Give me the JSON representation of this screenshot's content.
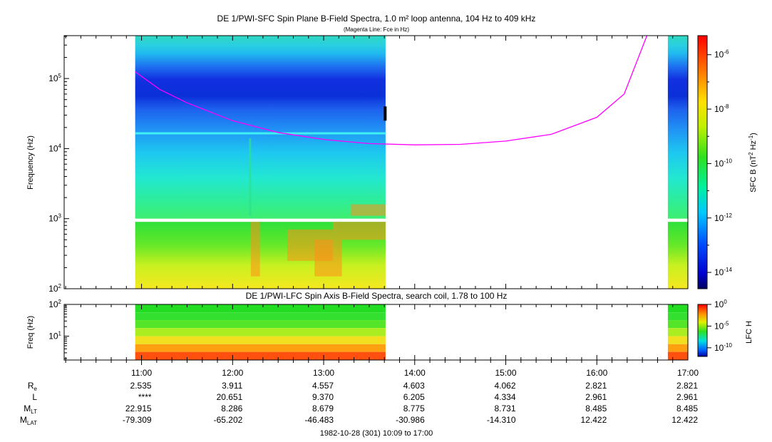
{
  "chart_data": [
    {
      "type": "heatmap",
      "title": "DE 1/PWI-SFC  Spin Plane B-Field Spectra, 1.0 m² loop antenna, 104 Hz to 409 kHz",
      "subtitle": "(Magenta Line: Fce in Hz)",
      "xlabel": "",
      "ylabel": "Frequency (Hz)",
      "y_scale": "log",
      "ylim": [
        100,
        409000
      ],
      "y_ticks": [
        {
          "value": 100,
          "base": "10",
          "exp": "2"
        },
        {
          "value": 1000,
          "base": "10",
          "exp": "3"
        },
        {
          "value": 10000,
          "base": "10",
          "exp": "4"
        },
        {
          "value": 100000,
          "base": "10",
          "exp": "5"
        }
      ],
      "x_range_hours": [
        10.15,
        17.0
      ],
      "data_coverage_hours": [
        [
          10.93,
          13.68
        ],
        [
          16.78,
          17.0
        ]
      ],
      "gap_band_hz": [
        900,
        1000
      ],
      "colorbar": {
        "label_base": "SFC B (nT",
        "label_sup1": "2",
        "label_mid": " Hz",
        "label_sup2": "-1",
        "label_end": ")",
        "range_exp": [
          -14.6,
          -5.3
        ],
        "ticks": [
          {
            "exp": -6,
            "label_base": "10",
            "label_exp": "-6"
          },
          {
            "exp": -8,
            "label_base": "10",
            "label_exp": "-8"
          },
          {
            "exp": -10,
            "label_base": "10",
            "label_exp": "-10"
          },
          {
            "exp": -12,
            "label_base": "10",
            "label_exp": "-12"
          },
          {
            "exp": -14,
            "label_base": "10",
            "label_exp": "-14"
          }
        ]
      },
      "series": [
        {
          "name": "Fce (Hz)",
          "color": "#ff00ff",
          "x": [
            10.93,
            11.2,
            11.5,
            12.0,
            12.5,
            13.0,
            13.5,
            14.0,
            14.5,
            15.0,
            15.5,
            16.0,
            16.3,
            16.55
          ],
          "y": [
            125000,
            70000,
            45000,
            25000,
            17000,
            13500,
            11800,
            11300,
            11500,
            12800,
            16000,
            28000,
            60000,
            409000
          ]
        }
      ]
    },
    {
      "type": "heatmap",
      "title": "DE 1/PWI-LFC  Spin Axis B-Field Spectra, search coil, 1.78 to 100 Hz",
      "ylabel": "Freq (Hz)",
      "y_scale": "log",
      "ylim": [
        1.78,
        100
      ],
      "y_ticks": [
        {
          "value": 10,
          "base": "10",
          "exp": "1"
        },
        {
          "value": 100,
          "base": "10",
          "exp": "2"
        }
      ],
      "data_coverage_hours": [
        [
          10.93,
          13.68
        ],
        [
          16.78,
          17.0
        ]
      ],
      "bands": [
        {
          "f_low": 56,
          "f_high": 100,
          "color": "#22dd22"
        },
        {
          "f_low": 32,
          "f_high": 56,
          "color": "#33e030"
        },
        {
          "f_low": 18,
          "f_high": 32,
          "color": "#55e528"
        },
        {
          "f_low": 10,
          "f_high": 18,
          "color": "#aaee22"
        },
        {
          "f_low": 5.6,
          "f_high": 10,
          "color": "#f2e020"
        },
        {
          "f_low": 3.2,
          "f_high": 5.6,
          "color": "#ffa010"
        },
        {
          "f_low": 1.78,
          "f_high": 3.2,
          "color": "#ff5010"
        }
      ],
      "colorbar": {
        "label": "LFC H",
        "range_exp": [
          -12,
          0
        ],
        "ticks": [
          {
            "exp": 0,
            "label_base": "10",
            "label_exp": "0"
          },
          {
            "exp": -5,
            "label_base": "10",
            "label_exp": "-5"
          },
          {
            "exp": -10,
            "label_base": "10",
            "label_exp": "-10"
          }
        ]
      }
    }
  ],
  "time_axis": {
    "range_hours": [
      10.15,
      17.0
    ],
    "major": [
      11,
      12,
      13,
      14,
      15,
      16,
      17
    ],
    "labels": [
      "11:00",
      "12:00",
      "13:00",
      "14:00",
      "15:00",
      "16:00",
      "17:00"
    ],
    "minor_step_hours": 0.1666667
  },
  "ephemeris": {
    "rows": [
      {
        "label_base": "R",
        "label_sub": "e",
        "values": [
          "2.535",
          "3.911",
          "4.557",
          "4.603",
          "4.062",
          "2.821",
          "2.821"
        ]
      },
      {
        "label_base": "L",
        "label_sub": "",
        "values": [
          "****",
          "20.651",
          "9.370",
          "6.205",
          "4.334",
          "2.961",
          "2.961"
        ]
      },
      {
        "label_base": "M",
        "label_sub": "LT",
        "values": [
          "22.915",
          "8.286",
          "8.679",
          "8.775",
          "8.731",
          "8.485",
          "8.485"
        ]
      },
      {
        "label_base": "M",
        "label_sub": "LAT",
        "values": [
          "-79.309",
          "-65.202",
          "-46.483",
          "-30.986",
          "-14.310",
          "12.422",
          "12.422"
        ]
      }
    ]
  },
  "footer": "1982-10-28 (301) 10:09 to 17:00"
}
